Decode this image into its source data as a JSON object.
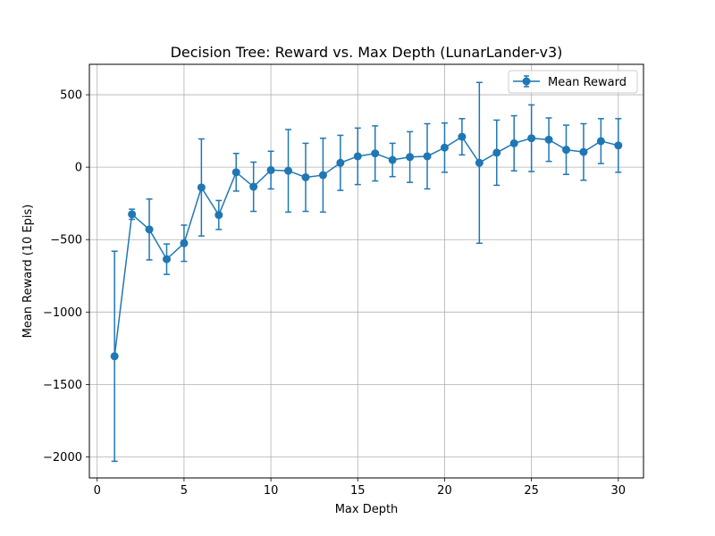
{
  "chart_data": {
    "type": "line",
    "title": "Decision Tree: Reward vs. Max Depth (LunarLander-v3)",
    "xlabel": "Max Depth",
    "ylabel": "Mean Reward (10 Epis)",
    "xlim": [
      -0.45,
      31.45
    ],
    "ylim": [
      -2145,
      710
    ],
    "xticks": [
      0,
      5,
      10,
      15,
      20,
      25,
      30
    ],
    "yticks": [
      -2000,
      -1500,
      -1000,
      -500,
      0,
      500
    ],
    "grid": true,
    "legend_position": "top-right",
    "color": "#1f77b4",
    "series": [
      {
        "name": "Mean Reward",
        "x": [
          1,
          2,
          3,
          4,
          5,
          6,
          7,
          8,
          9,
          10,
          11,
          12,
          13,
          14,
          15,
          16,
          17,
          18,
          19,
          20,
          21,
          22,
          23,
          24,
          25,
          26,
          27,
          28,
          29,
          30
        ],
        "values": [
          -1305,
          -325,
          -430,
          -635,
          -525,
          -140,
          -330,
          -35,
          -135,
          -20,
          -25,
          -70,
          -55,
          30,
          75,
          95,
          50,
          70,
          75,
          135,
          210,
          30,
          100,
          165,
          200,
          190,
          120,
          105,
          180,
          150
        ],
        "error": [
          725,
          35,
          210,
          105,
          125,
          335,
          100,
          130,
          170,
          130,
          285,
          235,
          255,
          190,
          195,
          190,
          115,
          175,
          225,
          170,
          125,
          555,
          225,
          190,
          230,
          150,
          170,
          195,
          155,
          185
        ]
      }
    ]
  }
}
